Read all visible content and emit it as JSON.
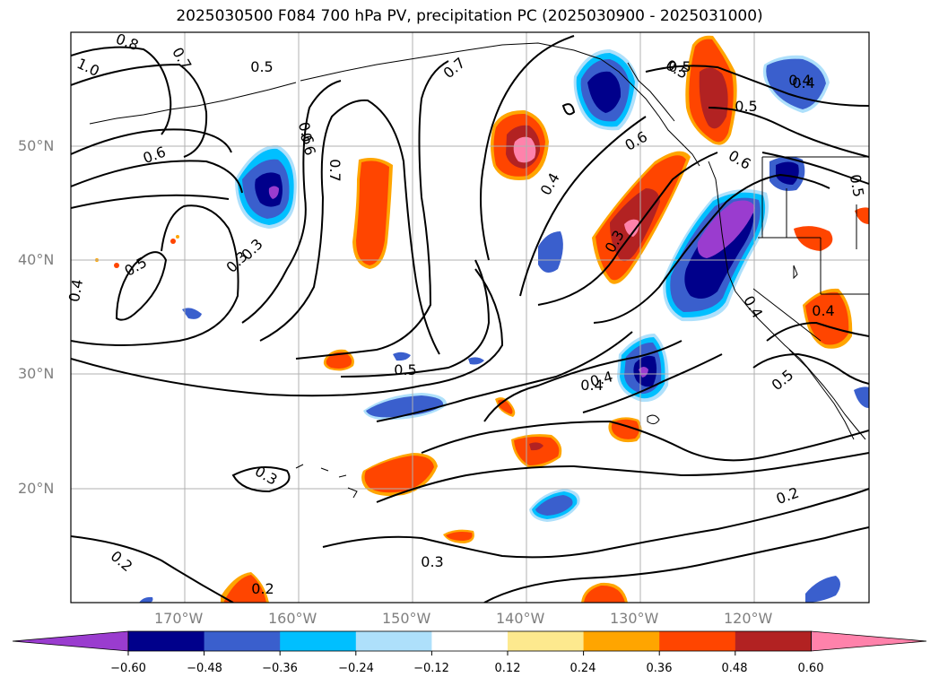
{
  "title": "2025030500 F084 700 hPa PV, precipitation PC (2025030900 - 2025031000)",
  "map": {
    "lon_labels": [
      "170°W",
      "160°W",
      "150°W",
      "140°W",
      "130°W",
      "120°W"
    ],
    "lat_labels": [
      "50°N",
      "40°N",
      "30°N",
      "20°N"
    ],
    "contour_labels": [
      "0.8",
      "0.7",
      "0.5",
      "0.7",
      "0.5",
      "0.4",
      "1.0",
      "0.6",
      "0.6",
      "0.7",
      "0.4",
      "0.6",
      "0.5",
      "0.5",
      "0.6",
      "0.3",
      "0.4",
      "0.5",
      "0.3",
      "0.4",
      "0.5",
      "0.4",
      "0.5",
      "0.5",
      "0.3",
      "0.2",
      "0.3",
      "0.2",
      "0.2",
      "0.4",
      "0.4",
      "0.3",
      "0.6",
      "0.4"
    ]
  },
  "colorbar": {
    "ticks": [
      "−0.60",
      "−0.48",
      "−0.36",
      "−0.24",
      "−0.12",
      "0.12",
      "0.24",
      "0.36",
      "0.48",
      "0.60"
    ],
    "colors": [
      "#9a3ccf",
      "#00008b",
      "#3a5fcd",
      "#00bfff",
      "#aee0fb",
      "#ffffff",
      "#fde98e",
      "#ffa500",
      "#ff4500",
      "#b22222",
      "#ff82ab"
    ]
  },
  "colors": {
    "purple": "#9a3ccf",
    "navy": "#00008b",
    "royal": "#3a5fcd",
    "sky": "#00bfff",
    "pale_blue": "#aee0fb",
    "pale_yellow": "#fde98e",
    "orange": "#ffa500",
    "orange_red": "#ff4500",
    "firebrick": "#b22222",
    "pink": "#ff82ab"
  }
}
